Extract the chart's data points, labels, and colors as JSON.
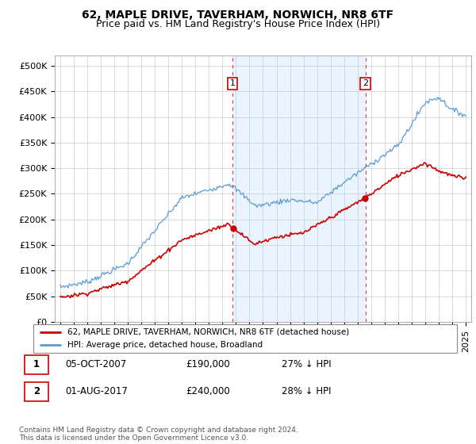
{
  "title": "62, MAPLE DRIVE, TAVERHAM, NORWICH, NR8 6TF",
  "subtitle": "Price paid vs. HM Land Registry's House Price Index (HPI)",
  "ylabel_ticks": [
    "£0",
    "£50K",
    "£100K",
    "£150K",
    "£200K",
    "£250K",
    "£300K",
    "£350K",
    "£400K",
    "£450K",
    "£500K"
  ],
  "ytick_values": [
    0,
    50000,
    100000,
    150000,
    200000,
    250000,
    300000,
    350000,
    400000,
    450000,
    500000
  ],
  "ylim": [
    0,
    520000
  ],
  "xlim_start": 1994.6,
  "xlim_end": 2025.4,
  "sale1_x": 2007.75,
  "sale1_y": 190000,
  "sale1_label": "1",
  "sale2_x": 2017.58,
  "sale2_y": 240000,
  "sale2_label": "2",
  "hpi_color": "#5b9bd5",
  "hpi_fill_color": "#ddeeff",
  "price_color": "#cc0000",
  "annotation_box_color": "#cc0000",
  "grid_color": "#cccccc",
  "background_color": "#ffffff",
  "legend_line1": "62, MAPLE DRIVE, TAVERHAM, NORWICH, NR8 6TF (detached house)",
  "legend_line2": "HPI: Average price, detached house, Broadland",
  "table_row1": [
    "1",
    "05-OCT-2007",
    "£190,000",
    "27% ↓ HPI"
  ],
  "table_row2": [
    "2",
    "01-AUG-2017",
    "£240,000",
    "28% ↓ HPI"
  ],
  "footer": "Contains HM Land Registry data © Crown copyright and database right 2024.\nThis data is licensed under the Open Government Licence v3.0.",
  "title_fontsize": 10,
  "subtitle_fontsize": 9,
  "tick_fontsize": 8
}
